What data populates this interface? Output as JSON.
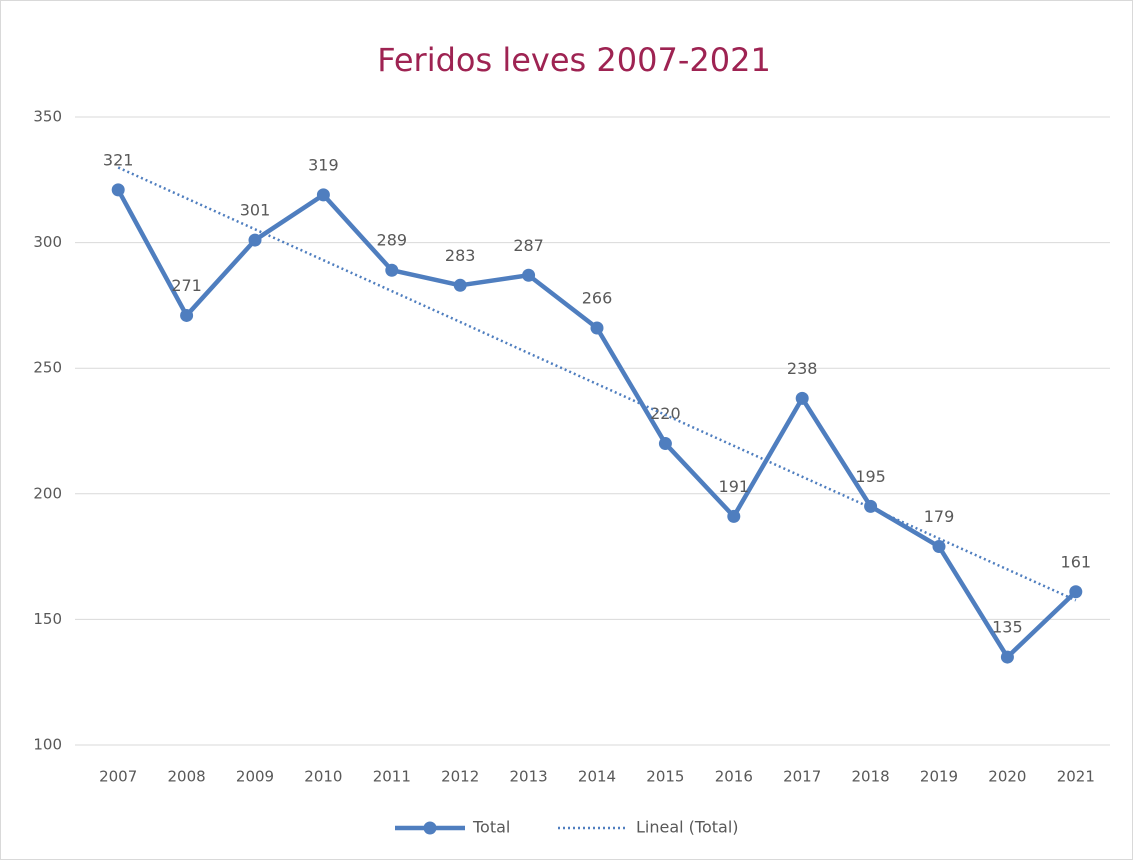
{
  "chart_data": {
    "type": "line",
    "title": "Feridos leves 2007-2021",
    "categories": [
      "2007",
      "2008",
      "2009",
      "2010",
      "2011",
      "2012",
      "2013",
      "2014",
      "2015",
      "2016",
      "2017",
      "2018",
      "2019",
      "2020",
      "2021"
    ],
    "series": [
      {
        "name": "Total",
        "color": "#4F7EBF",
        "values": [
          321,
          271,
          301,
          319,
          289,
          283,
          287,
          266,
          220,
          191,
          238,
          195,
          179,
          135,
          161
        ],
        "markers": true,
        "data_labels": true
      },
      {
        "name": "Lineal (Total)",
        "color": "#4F7EBF",
        "dash": "dotted",
        "values": [
          329.9,
          317.6,
          305.3,
          293.0,
          280.7,
          268.4,
          256.0,
          243.7,
          231.4,
          219.1,
          206.8,
          194.5,
          182.2,
          169.9,
          157.6
        ],
        "markers": false,
        "data_labels": false
      }
    ],
    "ylim": [
      100,
      350
    ],
    "yticks": [
      100,
      150,
      200,
      250,
      300,
      350
    ],
    "grid": true,
    "legend": "bottom"
  }
}
